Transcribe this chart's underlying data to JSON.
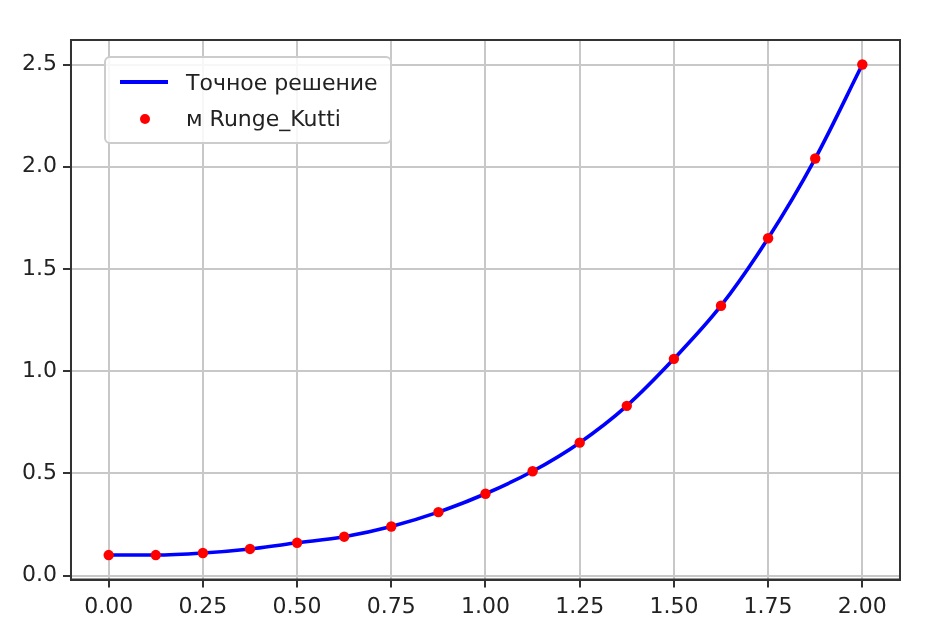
{
  "chart_data": {
    "type": "line",
    "x": [
      0,
      0.125,
      0.25,
      0.375,
      0.5,
      0.625,
      0.75,
      0.875,
      1.0,
      1.125,
      1.25,
      1.375,
      1.5,
      1.625,
      1.75,
      1.875,
      2.0
    ],
    "series": [
      {
        "name": "Точное решение",
        "color": "#0000ff",
        "marker": "none",
        "line_style": "solid",
        "values": [
          0.1,
          0.1,
          0.11,
          0.13,
          0.16,
          0.19,
          0.24,
          0.31,
          0.4,
          0.51,
          0.65,
          0.83,
          1.06,
          1.32,
          1.65,
          2.04,
          2.5
        ]
      },
      {
        "name": "м Runge_Kutti",
        "type": "scatter",
        "color": "#ff0000",
        "marker": "circle",
        "values": [
          0.1,
          0.1,
          0.11,
          0.13,
          0.16,
          0.19,
          0.24,
          0.31,
          0.4,
          0.51,
          0.65,
          0.83,
          1.06,
          1.32,
          1.65,
          2.04,
          2.5
        ]
      }
    ],
    "xlim": [
      -0.1,
      2.1
    ],
    "xticks": [
      {
        "value": 0,
        "label": "0.00"
      },
      {
        "value": 0.25,
        "label": "0.25"
      },
      {
        "value": 0.5,
        "label": "0.50"
      },
      {
        "value": 0.75,
        "label": "0.75"
      },
      {
        "value": 1,
        "label": "1.00"
      },
      {
        "value": 1.25,
        "label": "1.25"
      },
      {
        "value": 1.5,
        "label": "1.50"
      },
      {
        "value": 1.75,
        "label": "1.75"
      },
      {
        "value": 2,
        "label": "2.00"
      }
    ],
    "ylim": [
      -0.02,
      2.62
    ],
    "yticks": [
      {
        "value": 0,
        "label": "0.0"
      },
      {
        "value": 0.5,
        "label": "0.5"
      },
      {
        "value": 1,
        "label": "1.0"
      },
      {
        "value": 1.5,
        "label": "1.5"
      },
      {
        "value": 2,
        "label": "2.0"
      },
      {
        "value": 2.5,
        "label": "2.5"
      }
    ],
    "grid": true,
    "legend": "top left"
  }
}
